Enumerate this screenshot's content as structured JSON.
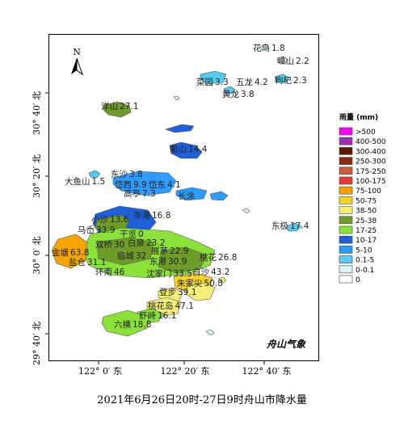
{
  "map": {
    "north_arrow_label": "N",
    "brand": "舟山气象",
    "lat_ticks": [
      "30° 40′ 北",
      "30° 20′ 北",
      "30° 0′ 北",
      "29° 40′ 北"
    ],
    "lon_ticks": [
      "122° 0′ 东",
      "122° 20′ 东",
      "122° 40′ 东"
    ],
    "stations": [
      {
        "name": "花鸟",
        "value": "1.8"
      },
      {
        "name": "嵊山",
        "value": "2.2"
      },
      {
        "name": "菜园",
        "value": "3.3"
      },
      {
        "name": "五龙",
        "value": "4.2"
      },
      {
        "name": "枸杞",
        "value": "2.3"
      },
      {
        "name": "黄龙",
        "value": "3.8"
      },
      {
        "name": "洋山",
        "value": "27.1"
      },
      {
        "name": "衢山",
        "value": "14.4"
      },
      {
        "name": "大鱼山",
        "value": "1.5"
      },
      {
        "name": "东沙",
        "value": "3.8"
      },
      {
        "name": "岱西",
        "value": "9.9"
      },
      {
        "name": "岱东",
        "value": "4.1"
      },
      {
        "name": "高亭",
        "value": "7.3"
      },
      {
        "name": "长涂",
        "value": ""
      },
      {
        "name": "东极",
        "value": "17.4"
      },
      {
        "name": "小沙",
        "value": "13.6"
      },
      {
        "name": "马岙",
        "value": "33.9"
      },
      {
        "name": "干览",
        "value": "0"
      },
      {
        "name": "岑港",
        "value": "16.8"
      },
      {
        "name": "双桥",
        "value": "30"
      },
      {
        "name": "白泉",
        "value": "23.2"
      },
      {
        "name": "金塘",
        "value": "63.8"
      },
      {
        "name": "盐仓",
        "value": "31.1"
      },
      {
        "name": "临城",
        "value": "32"
      },
      {
        "name": "展茅",
        "value": "22.9"
      },
      {
        "name": "东港",
        "value": "30.9"
      },
      {
        "name": "桃花",
        "value": "26.8"
      },
      {
        "name": "环南",
        "value": "46"
      },
      {
        "name": "沈家门",
        "value": "33.5"
      },
      {
        "name": "白沙",
        "value": "43.2"
      },
      {
        "name": "朱家尖",
        "value": "50.8"
      },
      {
        "name": "登步",
        "value": "39.1"
      },
      {
        "name": "桃花岛",
        "value": "47.1"
      },
      {
        "name": "虾峙",
        "value": "16.1"
      },
      {
        "name": "六横",
        "value": "18.8"
      }
    ]
  },
  "legend": {
    "title": "雨量 (mm)",
    "items": [
      {
        "label": ">500",
        "color": "#ff00ff"
      },
      {
        "label": "400-500",
        "color": "#9b30b0"
      },
      {
        "label": "300-400",
        "color": "#5a1a00"
      },
      {
        "label": "250-300",
        "color": "#8b2a10"
      },
      {
        "label": "175-250",
        "color": "#c8603a"
      },
      {
        "label": "100-175",
        "color": "#e33b3b"
      },
      {
        "label": "75-100",
        "color": "#f7a400"
      },
      {
        "label": "50-75",
        "color": "#f3d22a"
      },
      {
        "label": "38-50",
        "color": "#f4ef7a"
      },
      {
        "label": "25-38",
        "color": "#6e9c2a"
      },
      {
        "label": "17-25",
        "color": "#8be03a"
      },
      {
        "label": "10-17",
        "color": "#1f5fd8"
      },
      {
        "label": "5-10",
        "color": "#2f9bff"
      },
      {
        "label": "0.1-5",
        "color": "#58c8f0"
      },
      {
        "label": "0-0.1",
        "color": "#dff4f6"
      },
      {
        "label": "0",
        "color": "#ffffff"
      }
    ]
  },
  "caption": "2021年6月26日20时-27日9时舟山市降水量"
}
